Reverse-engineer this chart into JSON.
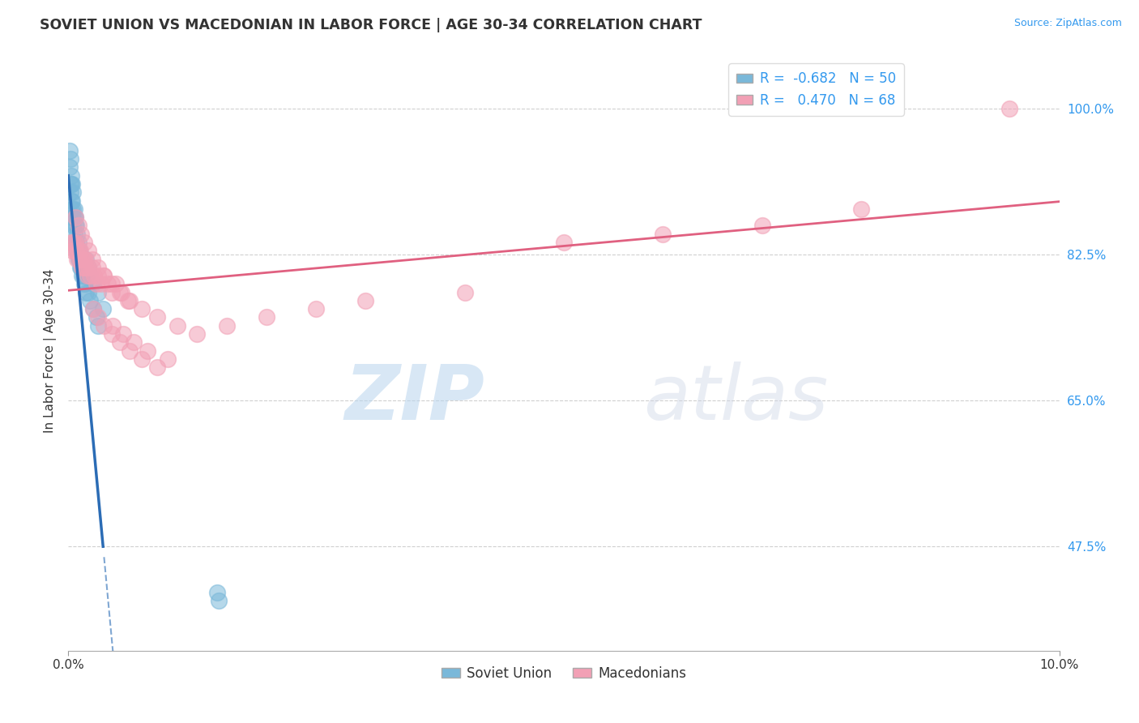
{
  "title": "SOVIET UNION VS MACEDONIAN IN LABOR FORCE | AGE 30-34 CORRELATION CHART",
  "ylabel": "In Labor Force | Age 30-34",
  "source_text": "Source: ZipAtlas.com",
  "watermark_zip": "ZIP",
  "watermark_atlas": "atlas",
  "xlim": [
    0.0,
    10.0
  ],
  "ylim": [
    35.0,
    107.0
  ],
  "xtick_positions": [
    0.0,
    10.0
  ],
  "xtick_labels": [
    "0.0%",
    "10.0%"
  ],
  "ytick_values": [
    47.5,
    65.0,
    82.5,
    100.0
  ],
  "soviet_R": -0.682,
  "soviet_N": 50,
  "macedonian_R": 0.47,
  "macedonian_N": 68,
  "soviet_color": "#7ab8d9",
  "macedonian_color": "#f2a0b5",
  "soviet_line_color": "#2b6cb5",
  "macedonian_line_color": "#e06080",
  "background_color": "#ffffff",
  "grid_color": "#d0d0d0",
  "sov_x": [
    0.01,
    0.01,
    0.02,
    0.02,
    0.02,
    0.03,
    0.03,
    0.03,
    0.03,
    0.04,
    0.04,
    0.04,
    0.05,
    0.05,
    0.05,
    0.05,
    0.06,
    0.06,
    0.06,
    0.07,
    0.07,
    0.07,
    0.08,
    0.08,
    0.09,
    0.09,
    0.1,
    0.1,
    0.11,
    0.11,
    0.12,
    0.13,
    0.14,
    0.15,
    0.16,
    0.17,
    0.18,
    0.2,
    0.22,
    0.25,
    0.28,
    0.3,
    0.18,
    0.2,
    0.22,
    0.25,
    0.3,
    0.35,
    1.5,
    1.52
  ],
  "sov_y": [
    95.0,
    93.0,
    94.0,
    91.0,
    90.0,
    92.0,
    91.0,
    89.0,
    88.0,
    91.0,
    89.0,
    87.0,
    90.0,
    88.0,
    87.0,
    86.0,
    88.0,
    87.0,
    85.0,
    87.0,
    86.0,
    84.0,
    86.0,
    84.0,
    85.0,
    83.0,
    84.0,
    82.0,
    83.0,
    82.0,
    81.0,
    81.0,
    80.0,
    80.0,
    79.0,
    79.0,
    78.0,
    78.0,
    77.0,
    76.0,
    75.0,
    74.0,
    82.0,
    81.0,
    80.0,
    79.0,
    78.0,
    76.0,
    42.0,
    41.0
  ],
  "mac_x": [
    0.03,
    0.04,
    0.05,
    0.06,
    0.07,
    0.08,
    0.09,
    0.1,
    0.11,
    0.12,
    0.13,
    0.14,
    0.15,
    0.16,
    0.17,
    0.18,
    0.19,
    0.2,
    0.22,
    0.24,
    0.26,
    0.28,
    0.3,
    0.33,
    0.36,
    0.4,
    0.44,
    0.48,
    0.54,
    0.6,
    0.07,
    0.1,
    0.13,
    0.16,
    0.2,
    0.24,
    0.3,
    0.36,
    0.44,
    0.52,
    0.62,
    0.74,
    0.9,
    1.1,
    1.3,
    1.6,
    2.0,
    2.5,
    3.0,
    4.0,
    0.25,
    0.3,
    0.36,
    0.44,
    0.52,
    0.62,
    0.74,
    0.9,
    5.0,
    6.0,
    7.0,
    8.0,
    9.5,
    0.45,
    0.55,
    0.66,
    0.8,
    1.0
  ],
  "mac_y": [
    84.0,
    83.0,
    84.0,
    83.0,
    84.0,
    83.0,
    82.0,
    83.0,
    82.0,
    83.0,
    82.0,
    81.0,
    82.0,
    81.0,
    82.0,
    81.0,
    80.0,
    81.0,
    80.0,
    81.0,
    80.0,
    79.0,
    80.0,
    79.0,
    80.0,
    79.0,
    78.0,
    79.0,
    78.0,
    77.0,
    87.0,
    86.0,
    85.0,
    84.0,
    83.0,
    82.0,
    81.0,
    80.0,
    79.0,
    78.0,
    77.0,
    76.0,
    75.0,
    74.0,
    73.0,
    74.0,
    75.0,
    76.0,
    77.0,
    78.0,
    76.0,
    75.0,
    74.0,
    73.0,
    72.0,
    71.0,
    70.0,
    69.0,
    84.0,
    85.0,
    86.0,
    88.0,
    100.0,
    74.0,
    73.0,
    72.0,
    71.0,
    70.0
  ]
}
